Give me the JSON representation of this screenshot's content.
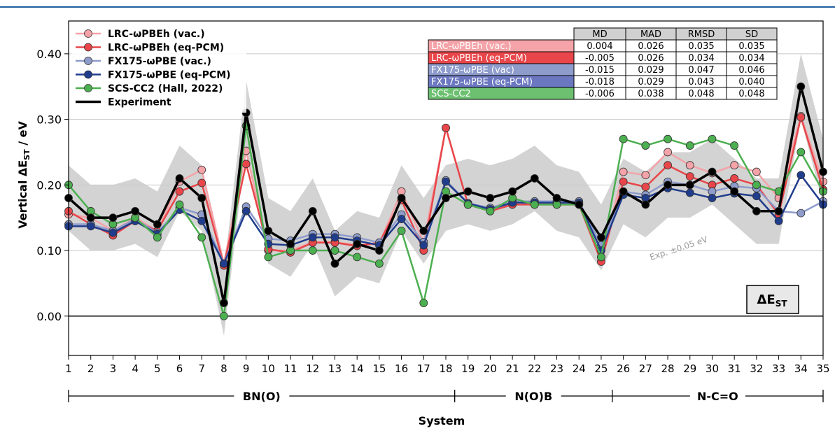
{
  "chart_data": {
    "type": "line",
    "title": "",
    "xlabel": "System",
    "ylabel_main": "Vertical ΔE",
    "ylabel_sub": "ST",
    "ylabel_unit": " / eV",
    "xlim": [
      1,
      35
    ],
    "ylim": [
      -0.06,
      0.45
    ],
    "yticks": [
      0.0,
      0.1,
      0.2,
      0.3,
      0.4
    ],
    "ytick_labels": [
      "0.00",
      "0.10",
      "0.20",
      "0.30",
      "0.40"
    ],
    "grid": "horizontal",
    "x": [
      1,
      2,
      3,
      4,
      5,
      6,
      7,
      8,
      9,
      10,
      11,
      12,
      13,
      14,
      15,
      16,
      17,
      18,
      19,
      20,
      21,
      22,
      23,
      24,
      25,
      26,
      27,
      28,
      29,
      30,
      31,
      32,
      33,
      34,
      35
    ],
    "series": [
      {
        "name": "LRC-ωPBEh (vac.)",
        "color": "#f4a3a8",
        "values": [
          0.155,
          0.15,
          0.13,
          0.15,
          0.13,
          0.205,
          0.223,
          0.08,
          0.252,
          0.1,
          0.1,
          0.113,
          0.113,
          0.108,
          0.11,
          0.19,
          0.113,
          0.287,
          0.17,
          0.165,
          0.175,
          0.172,
          0.172,
          0.172,
          0.09,
          0.22,
          0.215,
          0.25,
          0.23,
          0.218,
          0.23,
          0.22,
          0.18,
          0.305,
          0.205
        ]
      },
      {
        "name": "LRC-ωPBEh (eq-PCM)",
        "color": "#e8464a",
        "values": [
          0.16,
          0.14,
          0.123,
          0.145,
          0.13,
          0.19,
          0.203,
          0.077,
          0.232,
          0.102,
          0.097,
          0.112,
          0.112,
          0.107,
          0.112,
          0.177,
          0.1,
          0.287,
          0.17,
          0.16,
          0.17,
          0.17,
          0.17,
          0.17,
          0.083,
          0.205,
          0.197,
          0.23,
          0.213,
          0.2,
          0.21,
          0.2,
          0.155,
          0.303,
          0.193
        ]
      },
      {
        "name": "FX175-ωPBE (vac.)",
        "color": "#8e9ccc",
        "values": [
          0.14,
          0.14,
          0.13,
          0.148,
          0.127,
          0.165,
          0.155,
          0.08,
          0.167,
          0.118,
          0.115,
          0.125,
          0.125,
          0.12,
          0.112,
          0.155,
          0.113,
          0.207,
          0.172,
          0.165,
          0.175,
          0.175,
          0.175,
          0.175,
          0.108,
          0.19,
          0.185,
          0.205,
          0.2,
          0.19,
          0.198,
          0.195,
          0.16,
          0.157,
          0.175
        ]
      },
      {
        "name": "FX175-ωPBE (eq-PCM)",
        "color": "#203c8c",
        "values": [
          0.137,
          0.137,
          0.127,
          0.145,
          0.125,
          0.162,
          0.145,
          0.08,
          0.16,
          0.11,
          0.108,
          0.12,
          0.12,
          0.115,
          0.108,
          0.148,
          0.108,
          0.205,
          0.172,
          0.163,
          0.173,
          0.173,
          0.173,
          0.173,
          0.1,
          0.185,
          0.18,
          0.195,
          0.188,
          0.18,
          0.187,
          0.183,
          0.145,
          0.215,
          0.17
        ]
      },
      {
        "name": "SCS-CC2 (Hall, 2022)",
        "color": "#4caf50",
        "values": [
          0.2,
          0.16,
          0.14,
          0.15,
          0.12,
          0.17,
          0.12,
          0.0,
          0.29,
          0.09,
          0.1,
          0.1,
          0.1,
          0.09,
          0.08,
          0.13,
          0.02,
          0.19,
          0.17,
          0.16,
          0.18,
          0.17,
          0.17,
          0.17,
          0.09,
          0.27,
          0.26,
          0.27,
          0.26,
          0.27,
          0.26,
          0.2,
          0.19,
          0.25,
          0.19
        ]
      },
      {
        "name": "Experiment",
        "color": "#000000",
        "values": [
          0.18,
          0.15,
          0.15,
          0.16,
          0.14,
          0.21,
          0.18,
          0.02,
          0.31,
          0.13,
          0.11,
          0.16,
          0.08,
          0.11,
          0.1,
          0.18,
          0.13,
          0.18,
          0.19,
          0.18,
          0.19,
          0.21,
          0.18,
          0.17,
          0.12,
          0.19,
          0.17,
          0.2,
          0.2,
          0.22,
          0.19,
          0.16,
          0.16,
          0.35,
          0.22
        ]
      }
    ],
    "band_label": "Exp. ±0.05 eV",
    "badge_main": "ΔE",
    "badge_sub": "ST",
    "stats_table": {
      "columns": [
        "MD",
        "MAD",
        "RMSD",
        "SD"
      ],
      "rows": [
        {
          "label": "LRC-ωPBEh (vac.)",
          "color": "#f4a3a8",
          "values": [
            "0.004",
            "0.026",
            "0.035",
            "0.035"
          ]
        },
        {
          "label": "LRC-ωPBEh (eq-PCM)",
          "color": "#e8464a",
          "values": [
            "-0.005",
            "0.026",
            "0.034",
            "0.034"
          ]
        },
        {
          "label": "FX175-ωPBE (vac)",
          "color": "#8e9ccc",
          "values": [
            "-0.015",
            "0.029",
            "0.047",
            "0.046"
          ]
        },
        {
          "label": "FX175-ωPBE (eq-PCM)",
          "color": "#6b77c0",
          "values": [
            "-0.018",
            "0.029",
            "0.043",
            "0.040"
          ]
        },
        {
          "label": "SCS-CC2",
          "color": "#6cc070",
          "values": [
            "-0.006",
            "0.038",
            "0.048",
            "0.048"
          ]
        }
      ]
    },
    "groups": [
      {
        "label": "BN(O)",
        "from": 1,
        "to": 18.4
      },
      {
        "label": "N(O)B",
        "from": 18.4,
        "to": 25.5
      },
      {
        "label": "N-C=O",
        "from": 25.5,
        "to": 35
      }
    ],
    "legend_position": "top-left"
  }
}
